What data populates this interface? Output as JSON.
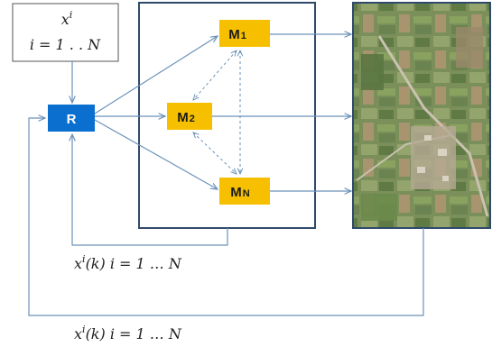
{
  "input_box": {
    "line1": "x",
    "line1_sup": "i",
    "line2": "i = 1 . . N"
  },
  "nodes": {
    "r": "R",
    "m1": "M",
    "m1_sub": "1",
    "m2": "M",
    "m2_sub": "2",
    "mn": "M",
    "mn_sub": "N"
  },
  "feedback_labels": {
    "inner": "x",
    "inner_sup": "i",
    "inner_rest": "(k) i = 1 … N",
    "outer": "x",
    "outer_sup": "i",
    "outer_rest": "(k) i = 1 … N"
  },
  "image": {
    "description_icon": "aerial-map-image"
  },
  "colors": {
    "router": "#0a6fcf",
    "model": "#f6c000",
    "arrow": "#6a92b8",
    "frame": "#2e4a6b"
  }
}
